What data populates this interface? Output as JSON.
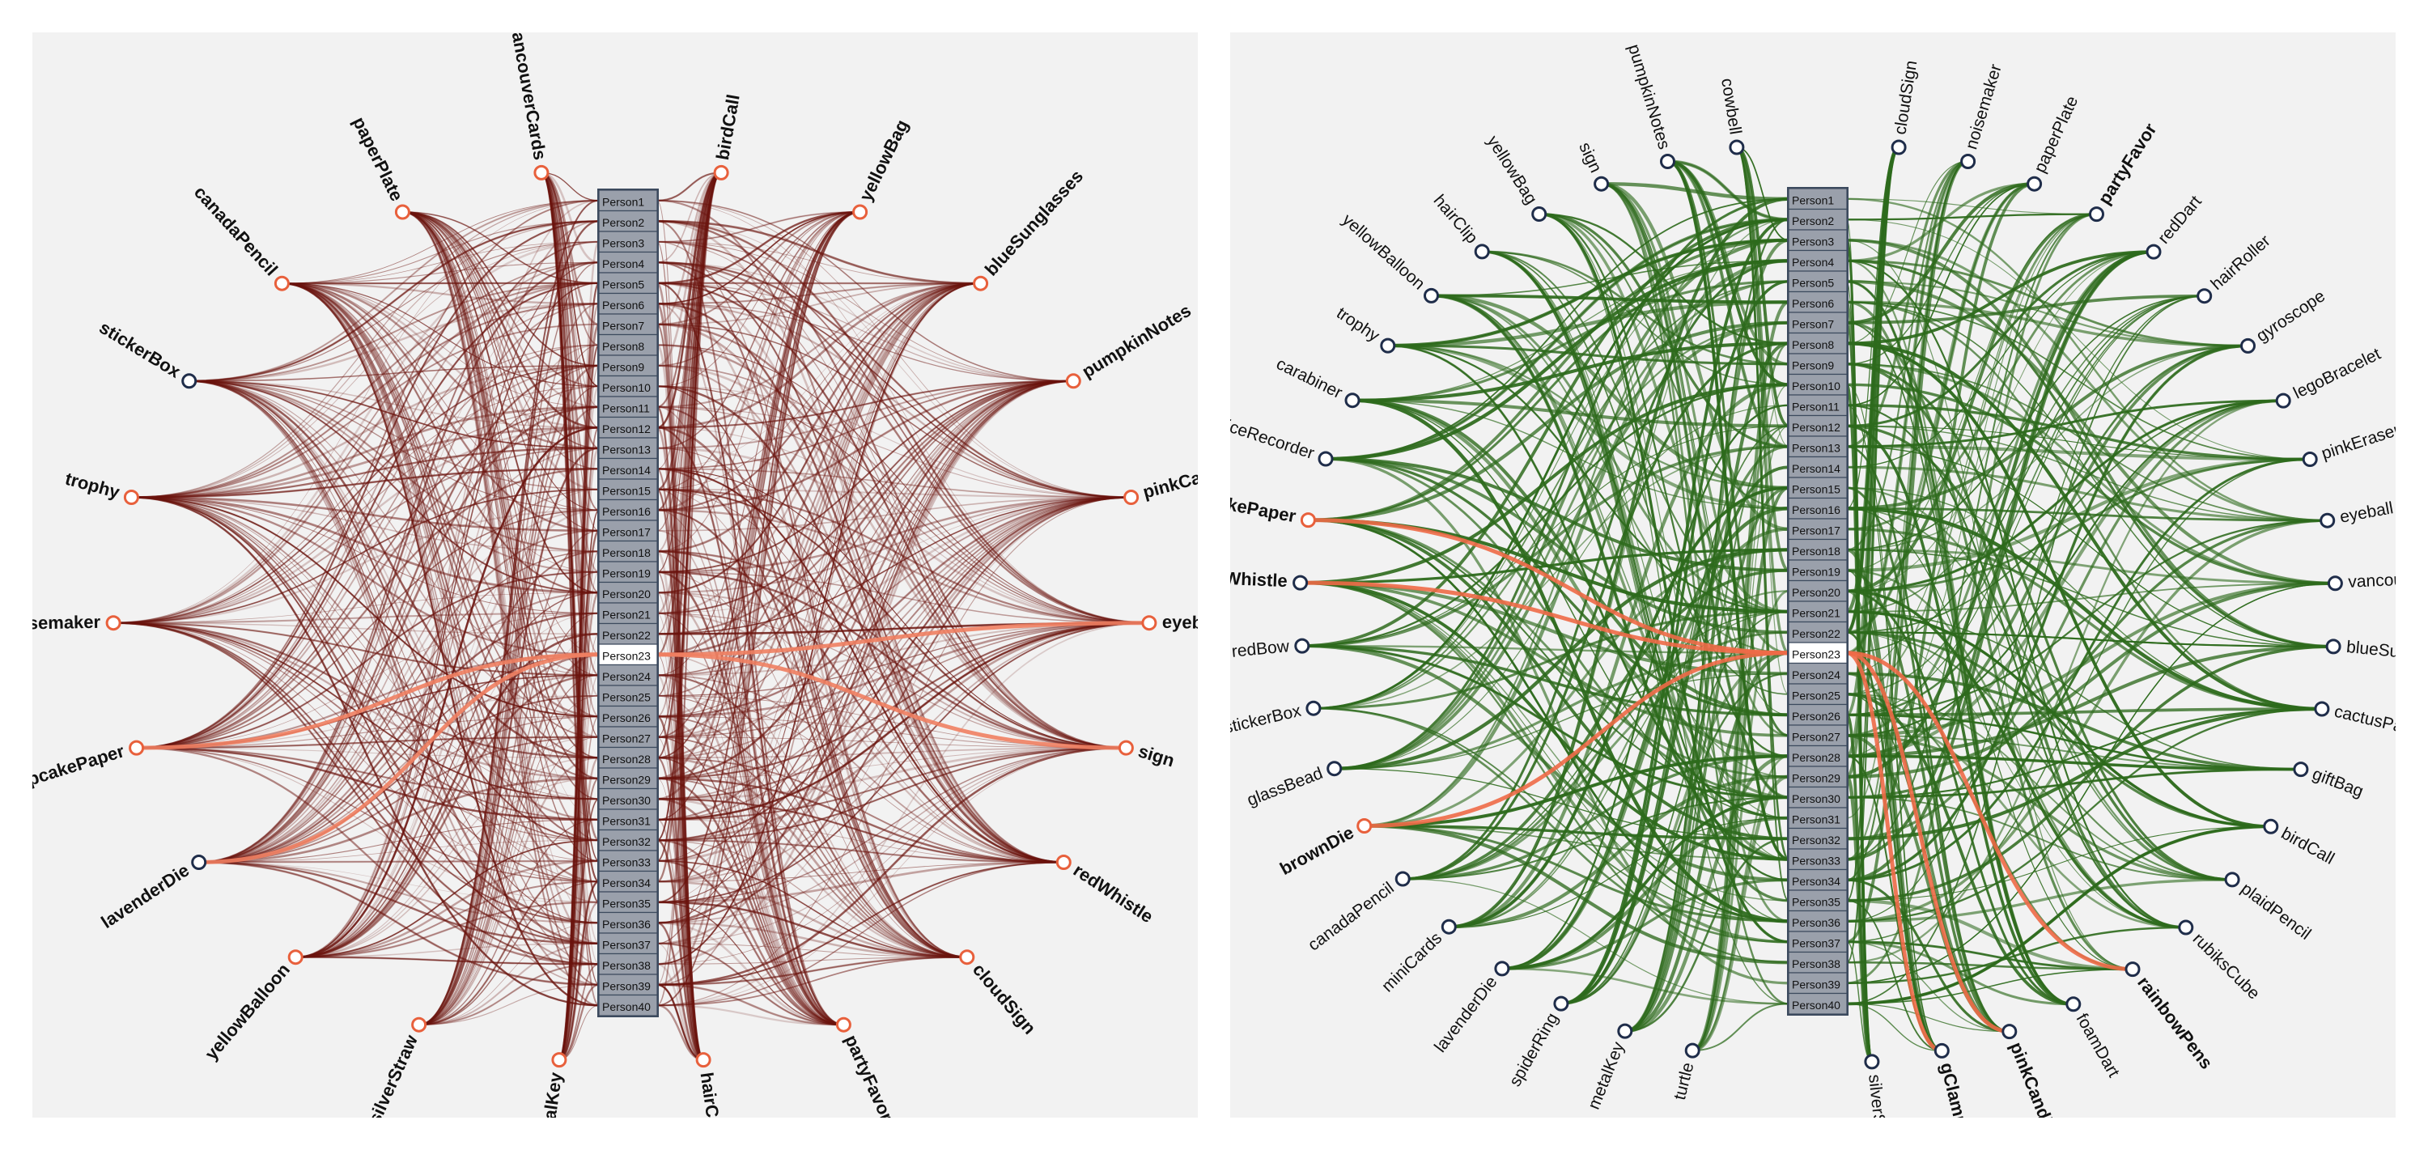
{
  "colors": {
    "panel_bg": "#f2f2f2",
    "person_box_fill": "#9aa0ab",
    "person_box_stroke": "#3c4a5e",
    "person_highlight_fill": "#ffffff",
    "left_link": "#6b140e",
    "left_link_highlight": "#f07f62",
    "left_node_orange": "#e8603c",
    "left_node_navy": "#1f2d4a",
    "right_link": "#2d6a1c",
    "right_link_highlight": "#ee6a47",
    "right_node": "#1f2d4a",
    "right_node_orange": "#e8603c"
  },
  "persons": [
    "Person1",
    "Person2",
    "Person3",
    "Person4",
    "Person5",
    "Person6",
    "Person7",
    "Person8",
    "Person9",
    "Person10",
    "Person11",
    "Person12",
    "Person13",
    "Person14",
    "Person15",
    "Person16",
    "Person17",
    "Person18",
    "Person19",
    "Person20",
    "Person21",
    "Person22",
    "Person23",
    "Person24",
    "Person25",
    "Person26",
    "Person27",
    "Person28",
    "Person29",
    "Person30",
    "Person31",
    "Person32",
    "Person33",
    "Person34",
    "Person35",
    "Person36",
    "Person37",
    "Person38",
    "Person39",
    "Person40"
  ],
  "highlighted_person": "Person23",
  "left": {
    "items_left": [
      {
        "label": "vancouverCards",
        "node": "orange"
      },
      {
        "label": "paperPlate",
        "node": "orange"
      },
      {
        "label": "canadaPencil",
        "node": "orange"
      },
      {
        "label": "stickerBox",
        "node": "navy"
      },
      {
        "label": "trophy",
        "node": "orange"
      },
      {
        "label": "noisemaker",
        "node": "orange"
      },
      {
        "label": "cupcakePaper",
        "node": "orange",
        "highlight": true
      },
      {
        "label": "lavenderDie",
        "node": "navy",
        "highlight": true
      },
      {
        "label": "yellowBalloon",
        "node": "orange"
      },
      {
        "label": "silverStraw",
        "node": "orange"
      },
      {
        "label": "metalKey",
        "node": "orange"
      }
    ],
    "items_right": [
      {
        "label": "birdCall",
        "node": "orange"
      },
      {
        "label": "yellowBag",
        "node": "orange"
      },
      {
        "label": "blueSunglasses",
        "node": "orange"
      },
      {
        "label": "pumpkinNotes",
        "node": "orange"
      },
      {
        "label": "pinkCandle",
        "node": "orange"
      },
      {
        "label": "eyeball",
        "node": "orange",
        "highlight": true
      },
      {
        "label": "sign",
        "node": "orange",
        "highlight": true
      },
      {
        "label": "redWhistle",
        "node": "orange"
      },
      {
        "label": "cloudSign",
        "node": "orange"
      },
      {
        "label": "partyFavor",
        "node": "orange"
      },
      {
        "label": "hairClip",
        "node": "orange"
      }
    ]
  },
  "right": {
    "items_left": [
      {
        "label": "cowbell",
        "node": "navy"
      },
      {
        "label": "pumpkinNotes",
        "node": "navy"
      },
      {
        "label": "sign",
        "node": "navy"
      },
      {
        "label": "yellowBag",
        "node": "navy"
      },
      {
        "label": "hairClip",
        "node": "navy"
      },
      {
        "label": "yellowBalloon",
        "node": "navy"
      },
      {
        "label": "trophy",
        "node": "navy"
      },
      {
        "label": "carabiner",
        "node": "navy"
      },
      {
        "label": "voiceRecorder",
        "node": "navy"
      },
      {
        "label": "cupcakePaper",
        "node": "orange",
        "bold": true,
        "highlight": true
      },
      {
        "label": "redWhistle",
        "node": "navy",
        "bold": true,
        "highlight": true
      },
      {
        "label": "redBow",
        "node": "navy"
      },
      {
        "label": "stickerBox",
        "node": "navy"
      },
      {
        "label": "glassBead",
        "node": "navy"
      },
      {
        "label": "brownDie",
        "node": "orange",
        "bold": true,
        "highlight": true
      },
      {
        "label": "canadaPencil",
        "node": "navy"
      },
      {
        "label": "miniCards",
        "node": "navy"
      },
      {
        "label": "lavenderDie",
        "node": "navy"
      },
      {
        "label": "spiderRing",
        "node": "navy"
      },
      {
        "label": "metalKey",
        "node": "navy"
      },
      {
        "label": "turtle",
        "node": "navy"
      }
    ],
    "items_right": [
      {
        "label": "cloudSign",
        "node": "navy"
      },
      {
        "label": "noisemaker",
        "node": "navy"
      },
      {
        "label": "paperPlate",
        "node": "navy"
      },
      {
        "label": "partyFavor",
        "node": "navy",
        "bold": true
      },
      {
        "label": "redDart",
        "node": "navy"
      },
      {
        "label": "hairRoller",
        "node": "navy"
      },
      {
        "label": "gyroscope",
        "node": "navy"
      },
      {
        "label": "legoBracelet",
        "node": "navy"
      },
      {
        "label": "pinkEraser",
        "node": "navy"
      },
      {
        "label": "eyeball",
        "node": "navy"
      },
      {
        "label": "vancouverCards",
        "node": "navy"
      },
      {
        "label": "blueSunglasses",
        "node": "navy"
      },
      {
        "label": "cactusPaper",
        "node": "navy"
      },
      {
        "label": "giftBag",
        "node": "navy"
      },
      {
        "label": "birdCall",
        "node": "navy"
      },
      {
        "label": "plaidPencil",
        "node": "navy"
      },
      {
        "label": "rubiksCube",
        "node": "navy"
      },
      {
        "label": "rainbowPens",
        "node": "navy",
        "bold": true,
        "highlight": true
      },
      {
        "label": "foamDart",
        "node": "navy"
      },
      {
        "label": "pinkCandle",
        "node": "navy",
        "bold": true,
        "highlight": true
      },
      {
        "label": "gClamp",
        "node": "navy",
        "bold": true,
        "highlight": true
      },
      {
        "label": "silverStraw",
        "node": "navy"
      }
    ]
  }
}
